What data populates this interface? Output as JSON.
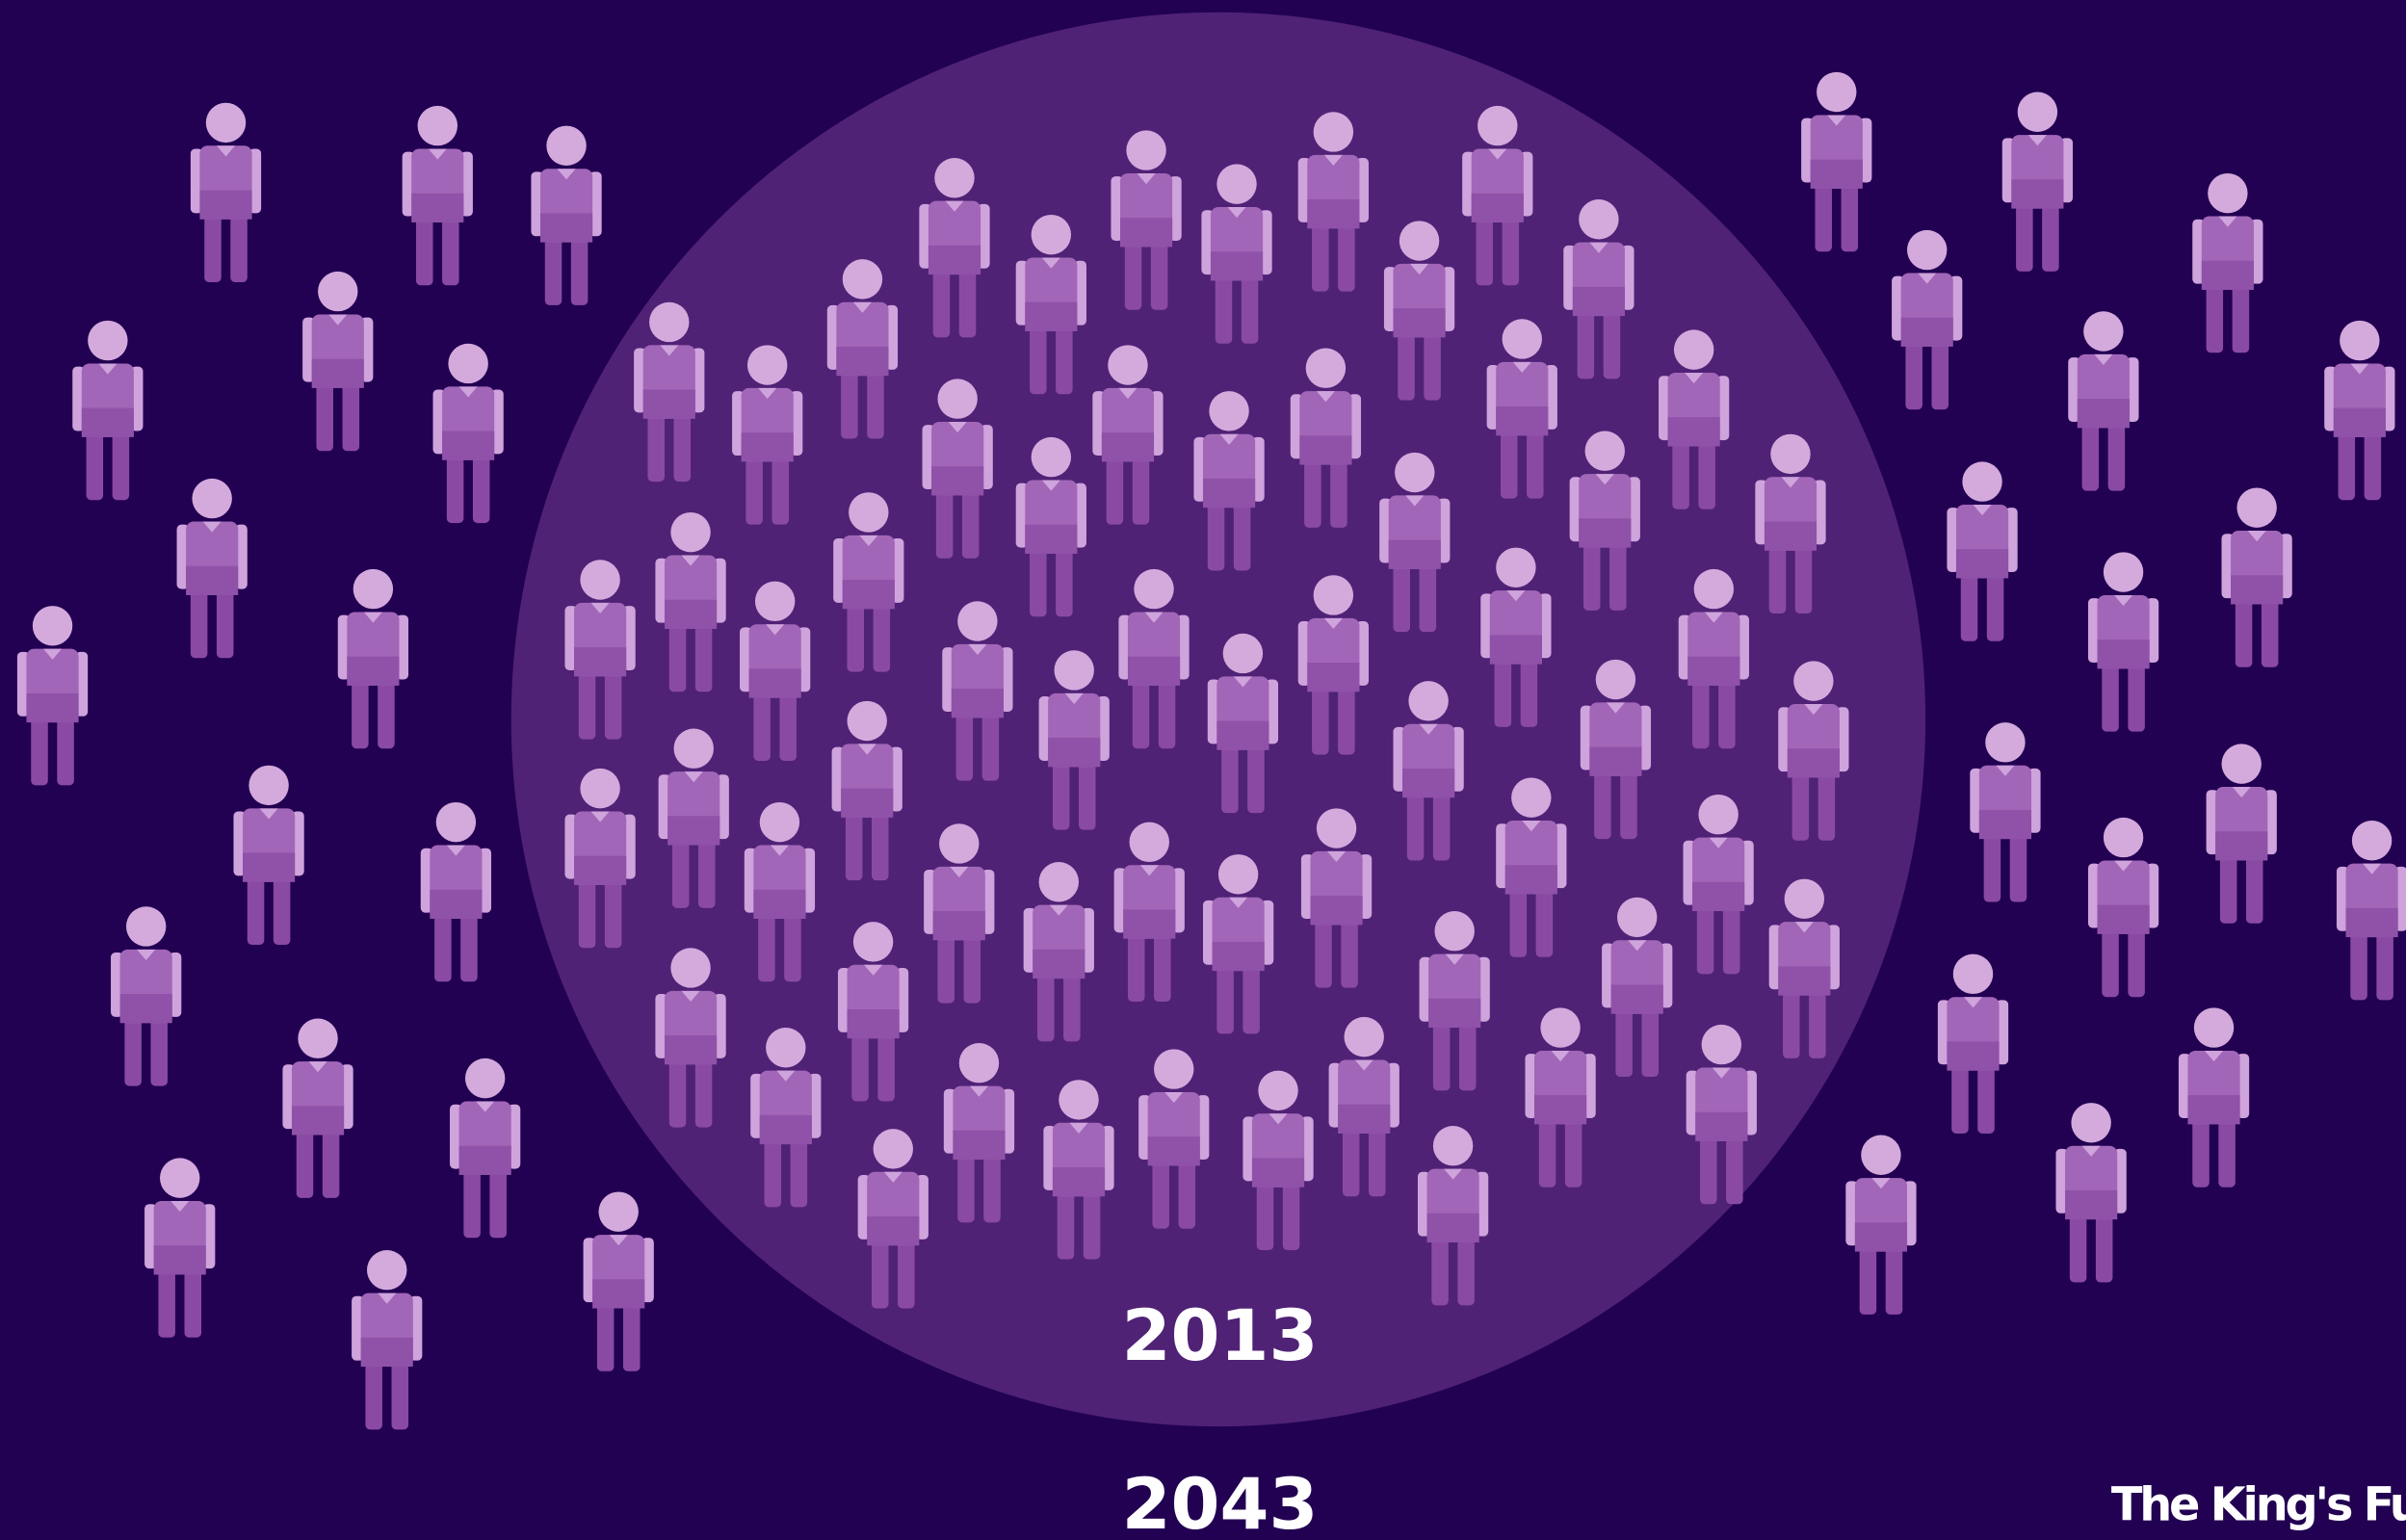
{
  "labels": {
    "inner_year": "2013",
    "outer_year": "2043"
  },
  "brand": "The King's Fund"
}
